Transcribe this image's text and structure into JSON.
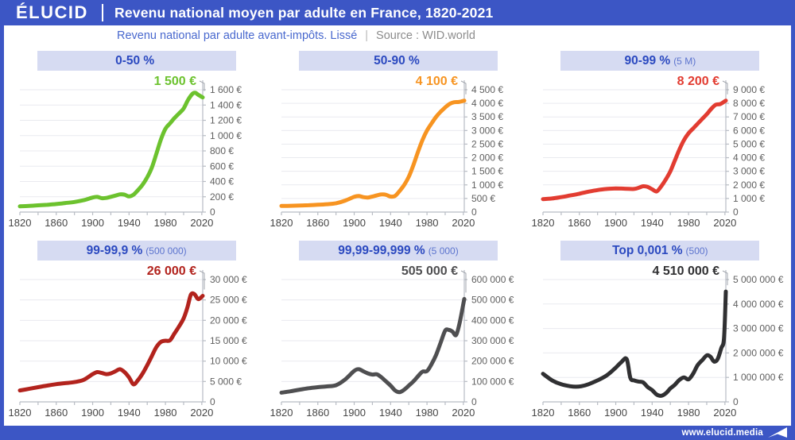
{
  "header": {
    "logo": "ÉLUCID",
    "title": "Revenu national moyen par adulte en France, 1820-2021"
  },
  "subtitle": {
    "text": "Revenu national par adulte avant-impôts. Lissé",
    "separator": "|",
    "source": "Source : WID.world"
  },
  "footer": {
    "url": "www.elucid.media"
  },
  "colors": {
    "brand_blue": "#3c56c5",
    "band_bg": "#d6dbf2",
    "band_text": "#2b49c0",
    "paren_text": "#5c74ce",
    "subtitle_blue": "#4868ce",
    "subtitle_gray": "#8c8c8c",
    "gridline": "#e9eaef",
    "axis": "#b8bcc4",
    "ytick_label": "#5f5f5f",
    "xtick_label": "#454545",
    "leader": "#a0a4ac",
    "series_green": "#6cc22e",
    "series_orange": "#f79421",
    "series_red": "#e23c31",
    "series_darkred": "#b2231d",
    "series_gray": "#4f4f51",
    "series_black": "#303032"
  },
  "chart_data": [
    {
      "type": "line",
      "title": "0-50 %",
      "paren": "",
      "value_label": "1 500 €",
      "color": "#6cc22e",
      "xlim": [
        1820,
        2021
      ],
      "ylim": [
        0,
        1600
      ],
      "ytick_values": [
        0,
        200,
        400,
        600,
        800,
        1000,
        1200,
        1400,
        1600
      ],
      "ytick_labels": [
        "0",
        "200 €",
        "400 €",
        "600 €",
        "800 €",
        "1 000 €",
        "1 200 €",
        "1 400 €",
        "1 600 €"
      ],
      "xticks_labeled": [
        1820,
        1860,
        1900,
        1940,
        1980,
        2020
      ],
      "xticks_minor": [
        1820,
        1840,
        1860,
        1880,
        1900,
        1920,
        1940,
        1960,
        1980,
        2000,
        2020
      ],
      "x": [
        1820,
        1830,
        1840,
        1850,
        1860,
        1870,
        1880,
        1890,
        1900,
        1905,
        1910,
        1915,
        1920,
        1925,
        1930,
        1935,
        1940,
        1945,
        1950,
        1955,
        1960,
        1965,
        1970,
        1975,
        1980,
        1985,
        1990,
        1995,
        2000,
        2005,
        2010,
        2013,
        2016,
        2021
      ],
      "y": [
        75,
        80,
        88,
        95,
        105,
        118,
        132,
        155,
        190,
        198,
        182,
        185,
        200,
        215,
        232,
        228,
        205,
        228,
        290,
        360,
        455,
        580,
        760,
        950,
        1090,
        1160,
        1230,
        1290,
        1355,
        1470,
        1550,
        1560,
        1535,
        1500
      ]
    },
    {
      "type": "line",
      "title": "50-90 %",
      "paren": "",
      "value_label": "4 100 €",
      "color": "#f79421",
      "xlim": [
        1820,
        2021
      ],
      "ylim": [
        0,
        4500
      ],
      "ytick_values": [
        0,
        500,
        1000,
        1500,
        2000,
        2500,
        3000,
        3500,
        4000,
        4500
      ],
      "ytick_labels": [
        "0",
        "500 €",
        "1 000 €",
        "1 500 €",
        "2 000 €",
        "2 500 €",
        "3 000 €",
        "3 500 €",
        "4 000 €",
        "4 500 €"
      ],
      "xticks_labeled": [
        1820,
        1860,
        1900,
        1940,
        1980,
        2020
      ],
      "xticks_minor": [
        1820,
        1840,
        1860,
        1880,
        1900,
        1920,
        1940,
        1960,
        1980,
        2000,
        2020
      ],
      "x": [
        1820,
        1830,
        1840,
        1850,
        1860,
        1870,
        1880,
        1890,
        1900,
        1905,
        1910,
        1915,
        1920,
        1925,
        1930,
        1935,
        1940,
        1945,
        1950,
        1955,
        1960,
        1965,
        1970,
        1975,
        1980,
        1985,
        1990,
        1995,
        2000,
        2005,
        2010,
        2015,
        2021
      ],
      "y": [
        225,
        232,
        242,
        252,
        268,
        290,
        325,
        420,
        560,
        590,
        550,
        535,
        570,
        615,
        650,
        635,
        570,
        595,
        780,
        1000,
        1300,
        1720,
        2200,
        2650,
        3000,
        3260,
        3500,
        3690,
        3850,
        3980,
        4040,
        4050,
        4100
      ]
    },
    {
      "type": "line",
      "title": "90-99 %",
      "paren": "(5 M)",
      "value_label": "8 200 €",
      "color": "#e23c31",
      "xlim": [
        1820,
        2021
      ],
      "ylim": [
        0,
        9000
      ],
      "ytick_values": [
        0,
        1000,
        2000,
        3000,
        4000,
        5000,
        6000,
        7000,
        8000,
        9000
      ],
      "ytick_labels": [
        "0",
        "1 000 €",
        "2 000 €",
        "3 000 €",
        "4 000 €",
        "5 000 €",
        "6 000 €",
        "7 000 €",
        "8 000 €",
        "9 000 €"
      ],
      "xticks_labeled": [
        1820,
        1860,
        1900,
        1940,
        1980,
        2020
      ],
      "xticks_minor": [
        1820,
        1840,
        1860,
        1880,
        1900,
        1920,
        1940,
        1960,
        1980,
        2000,
        2020
      ],
      "x": [
        1820,
        1830,
        1840,
        1850,
        1860,
        1870,
        1880,
        1890,
        1900,
        1910,
        1920,
        1925,
        1930,
        1935,
        1940,
        1945,
        1950,
        1955,
        1960,
        1965,
        1970,
        1975,
        1980,
        1985,
        1990,
        1995,
        2000,
        2005,
        2010,
        2015,
        2021
      ],
      "y": [
        950,
        1000,
        1100,
        1220,
        1350,
        1500,
        1620,
        1700,
        1740,
        1720,
        1700,
        1780,
        1900,
        1850,
        1680,
        1520,
        1900,
        2400,
        3000,
        3800,
        4600,
        5300,
        5800,
        6150,
        6500,
        6850,
        7200,
        7600,
        7900,
        7950,
        8200
      ]
    },
    {
      "type": "line",
      "title": "99-99,9 %",
      "paren": "(500 000)",
      "value_label": "26 000 €",
      "color": "#b2231d",
      "xlim": [
        1820,
        2021
      ],
      "ylim": [
        0,
        30000
      ],
      "ytick_values": [
        0,
        5000,
        10000,
        15000,
        20000,
        25000,
        30000
      ],
      "ytick_labels": [
        "0",
        "5 000 €",
        "10 000 €",
        "15 000 €",
        "20 000 €",
        "25 000 €",
        "30 000 €"
      ],
      "xticks_labeled": [
        1820,
        1860,
        1900,
        1940,
        1980,
        2020
      ],
      "xticks_minor": [
        1820,
        1840,
        1860,
        1880,
        1900,
        1920,
        1940,
        1960,
        1980,
        2000,
        2020
      ],
      "x": [
        1820,
        1830,
        1840,
        1850,
        1860,
        1870,
        1880,
        1890,
        1900,
        1905,
        1910,
        1915,
        1920,
        1925,
        1930,
        1935,
        1940,
        1945,
        1950,
        1955,
        1960,
        1965,
        1970,
        1975,
        1980,
        1985,
        1990,
        1995,
        2000,
        2004,
        2008,
        2012,
        2016,
        2021
      ],
      "y": [
        2800,
        3200,
        3600,
        4000,
        4350,
        4600,
        4850,
        5400,
        6800,
        7300,
        7100,
        6800,
        7000,
        7500,
        8000,
        7300,
        6000,
        4300,
        5400,
        7000,
        9000,
        11200,
        13400,
        14700,
        15000,
        15100,
        16800,
        18500,
        20500,
        23000,
        26300,
        26400,
        25200,
        26000
      ]
    },
    {
      "type": "line",
      "title": "99,99-99,999 %",
      "paren": "(5 000)",
      "value_label": "505 000 €",
      "color": "#4f4f51",
      "xlim": [
        1820,
        2021
      ],
      "ylim": [
        0,
        600000
      ],
      "ytick_values": [
        0,
        100000,
        200000,
        300000,
        400000,
        500000,
        600000
      ],
      "ytick_labels": [
        "0",
        "100 000 €",
        "200 000 €",
        "300 000 €",
        "400 000 €",
        "500 000 €",
        "600 000 €"
      ],
      "xticks_labeled": [
        1820,
        1860,
        1900,
        1940,
        1980,
        2020
      ],
      "xticks_minor": [
        1820,
        1840,
        1860,
        1880,
        1900,
        1920,
        1940,
        1960,
        1980,
        2000,
        2020
      ],
      "x": [
        1820,
        1830,
        1840,
        1850,
        1860,
        1870,
        1880,
        1890,
        1900,
        1905,
        1910,
        1915,
        1920,
        1925,
        1930,
        1935,
        1940,
        1945,
        1950,
        1955,
        1960,
        1965,
        1970,
        1975,
        1980,
        1985,
        1990,
        1995,
        2000,
        2004,
        2008,
        2012,
        2016,
        2021
      ],
      "y": [
        45000,
        52000,
        60000,
        67000,
        72000,
        76000,
        82000,
        110000,
        152000,
        160000,
        150000,
        140000,
        134000,
        135000,
        120000,
        100000,
        80000,
        56000,
        48000,
        60000,
        80000,
        100000,
        125000,
        148000,
        151000,
        185000,
        230000,
        290000,
        350000,
        353000,
        345000,
        328000,
        390000,
        505000
      ]
    },
    {
      "type": "line",
      "title": "Top 0,001 %",
      "paren": "(500)",
      "value_label": "4 510 000 €",
      "color": "#303032",
      "xlim": [
        1820,
        2021
      ],
      "ylim": [
        0,
        5000000
      ],
      "ytick_values": [
        0,
        1000000,
        2000000,
        3000000,
        4000000,
        5000000
      ],
      "ytick_labels": [
        "0",
        "1 000 000 €",
        "2 000 000 €",
        "3 000 000 €",
        "4 000 000 €",
        "5 000 000 €"
      ],
      "xticks_labeled": [
        1820,
        1860,
        1900,
        1940,
        1980,
        2020
      ],
      "xticks_minor": [
        1820,
        1840,
        1860,
        1880,
        1900,
        1920,
        1940,
        1960,
        1980,
        2000,
        2020
      ],
      "x": [
        1820,
        1830,
        1840,
        1850,
        1856,
        1862,
        1870,
        1880,
        1890,
        1900,
        1906,
        1912,
        1916,
        1920,
        1925,
        1930,
        1935,
        1940,
        1945,
        1950,
        1955,
        1960,
        1965,
        1970,
        1975,
        1980,
        1985,
        1990,
        1995,
        2000,
        2004,
        2008,
        2012,
        2016,
        2019,
        2021
      ],
      "y": [
        1150000,
        880000,
        720000,
        640000,
        620000,
        640000,
        720000,
        880000,
        1080000,
        1400000,
        1620000,
        1750000,
        980000,
        880000,
        830000,
        800000,
        610000,
        480000,
        300000,
        250000,
        350000,
        550000,
        700000,
        900000,
        1000000,
        920000,
        1150000,
        1500000,
        1700000,
        1900000,
        1850000,
        1650000,
        1750000,
        2200000,
        2600000,
        4510000
      ]
    }
  ]
}
